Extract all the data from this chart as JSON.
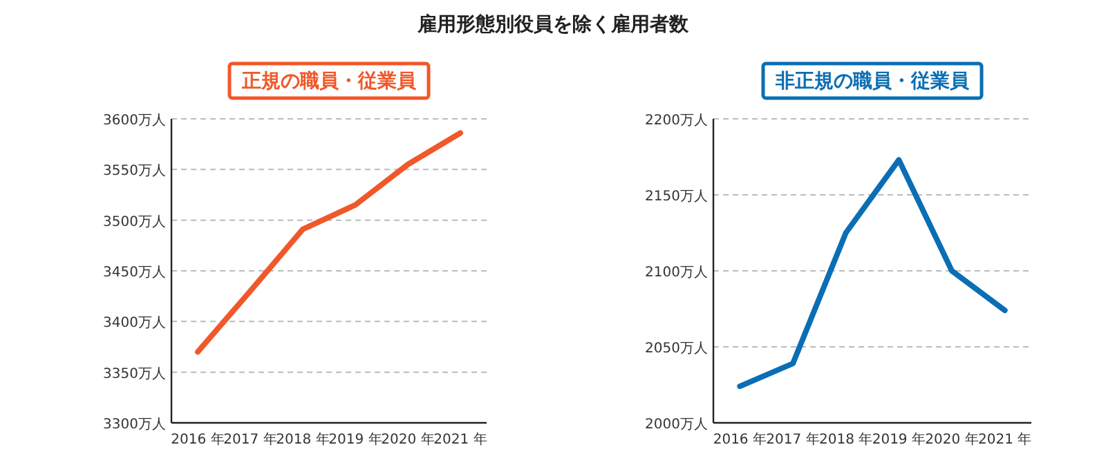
{
  "chart_data": [
    {
      "type": "line",
      "title": "正規の職員・従業員",
      "annotations": [
        "雇用形態別役員を除く雇用者数"
      ],
      "categories": [
        "2016 年",
        "2017 年",
        "2018 年",
        "2019 年",
        "2020 年",
        "2021 年"
      ],
      "series": [
        {
          "color": "#f0582a",
          "values": [
            3370,
            3430,
            3491,
            3515,
            3555,
            3586
          ]
        }
      ],
      "ylim": [
        3300,
        3600
      ],
      "yticks": [
        {
          "value": 3300,
          "label": "3300万人"
        },
        {
          "value": 3350,
          "label": "3350万人"
        },
        {
          "value": 3400,
          "label": "3400万人"
        },
        {
          "value": 3450,
          "label": "3450万人"
        },
        {
          "value": 3500,
          "label": "3500万人"
        },
        {
          "value": 3550,
          "label": "3550万人"
        },
        {
          "value": 3600,
          "label": "3600万人"
        }
      ],
      "grid": "y",
      "marker": "none",
      "line_style": "solid"
    },
    {
      "type": "line",
      "title": "非正規の職員・従業員",
      "categories": [
        "2016 年",
        "2017 年",
        "2018 年",
        "2019 年",
        "2020 年",
        "2021 年"
      ],
      "series": [
        {
          "color": "#0a6eb4",
          "values": [
            2024,
            2039,
            2125,
            2173,
            2100,
            2074
          ]
        }
      ],
      "ylim": [
        2000,
        2200
      ],
      "yticks": [
        {
          "value": 2000,
          "label": "2000万人"
        },
        {
          "value": 2050,
          "label": "2050万人"
        },
        {
          "value": 2100,
          "label": "2100万人"
        },
        {
          "value": 2150,
          "label": "2150万人"
        },
        {
          "value": 2200,
          "label": "2200万人"
        }
      ],
      "grid": "y",
      "marker": "none",
      "line_style": "solid"
    }
  ]
}
